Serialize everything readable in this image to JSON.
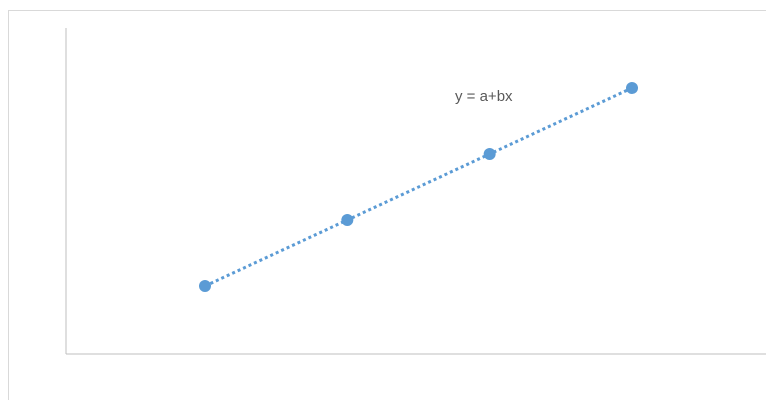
{
  "chart_data": {
    "type": "scatter",
    "title": "",
    "xlabel": "",
    "ylabel": "",
    "x": [
      1,
      2,
      3,
      4
    ],
    "y": [
      1,
      2,
      3,
      4
    ],
    "trendline": {
      "type": "linear",
      "style": "dotted",
      "equation_label": "y = a+bx"
    },
    "axes_ticks_visible": false,
    "grid": false,
    "legend": "none",
    "colors": {
      "series": "#5b9bd5",
      "axis": "#bfbfbf",
      "label": "#595959"
    }
  }
}
